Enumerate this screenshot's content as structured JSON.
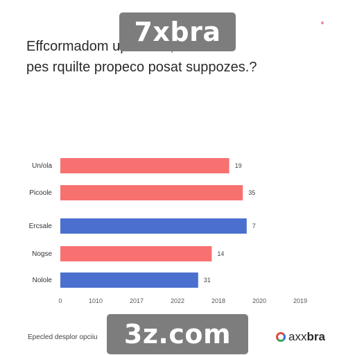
{
  "title": {
    "line1": "Effcormadom                      upratiune,",
    "line2": "pes rquilte propeco posat suppozes.?"
  },
  "watermarks": {
    "top": "7xbra",
    "bottom": "3z.com"
  },
  "footer": {
    "note": "Epecled desplor opciiu",
    "logo_prefix": "axx",
    "logo_suffix": "bra"
  },
  "chart_data": {
    "type": "bar",
    "orientation": "horizontal",
    "categories": [
      "Un/ola",
      "Picoole",
      "Ercsale",
      "Nogse",
      "Nolole"
    ],
    "values": [
      19,
      35,
      7,
      14,
      31
    ],
    "bar_lengths": [
      0.87,
      0.94,
      0.96,
      0.78,
      0.71
    ],
    "bar_colors": [
      "#f87171",
      "#f87171",
      "#4a6fcf",
      "#f87171",
      "#4a6fcf"
    ],
    "x_ticks": [
      "0",
      "1010",
      "2017",
      "2022",
      "2018",
      "2020",
      "2019"
    ],
    "grid": false
  }
}
